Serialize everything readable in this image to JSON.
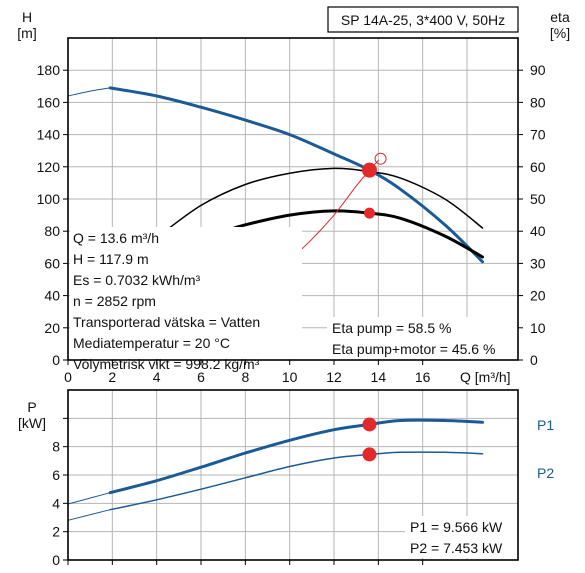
{
  "chart_data": [
    {
      "type": "line",
      "title": "SP 14A-25, 3*400 V, 50Hz",
      "ylabel_left": "H",
      "ylabel_left_unit": "[m]",
      "ylabel_right": "eta",
      "ylabel_right_unit": "[%]",
      "xlabel": "Q [m³/h]",
      "xlim": [
        0,
        20.3
      ],
      "ylim_left": [
        0,
        200
      ],
      "ylim_right": [
        0,
        100
      ],
      "x_ticks": [
        "0",
        "2",
        "4",
        "6",
        "8",
        "10",
        "12",
        "14",
        "16"
      ],
      "x_tick_values": [
        0,
        2,
        4,
        6,
        8,
        10,
        12,
        14,
        16
      ],
      "y_left_ticks": [
        "0",
        "20",
        "40",
        "60",
        "80",
        "100",
        "120",
        "140",
        "160",
        "180"
      ],
      "y_left_tick_values": [
        0,
        20,
        40,
        60,
        80,
        100,
        120,
        140,
        160,
        180
      ],
      "y_right_ticks": [
        "0",
        "10",
        "20",
        "30",
        "40",
        "50",
        "60",
        "70",
        "80",
        "90"
      ],
      "y_right_tick_values": [
        0,
        10,
        20,
        30,
        40,
        50,
        60,
        70,
        80,
        90
      ],
      "grid": true,
      "series": [
        {
          "axis": "left",
          "color": "#1a5a96",
          "width": 3,
          "x": [
            1.9,
            4,
            6,
            8,
            10,
            12,
            13.6,
            15,
            17,
            18.7
          ],
          "values": [
            169,
            164,
            157,
            149,
            140,
            128,
            117.9,
            106,
            84,
            61
          ]
        },
        {
          "axis": "left",
          "color": "#1a5a96",
          "width": 1,
          "x": [
            0,
            1,
            1.9
          ],
          "values": [
            164,
            167,
            169
          ]
        },
        {
          "axis": "right",
          "color": "#000000",
          "width": 1.5,
          "x": [
            4,
            6,
            8,
            10,
            12,
            13.6,
            15,
            17,
            18.7
          ],
          "values": [
            38,
            48,
            54.5,
            58,
            59.5,
            58.5,
            56.5,
            50,
            41
          ]
        },
        {
          "axis": "right",
          "color": "#000000",
          "width": 3,
          "x": [
            7.3,
            8,
            10,
            12,
            13.6,
            15,
            17,
            18.7
          ],
          "values": [
            40.5,
            42,
            45,
            46.3,
            45.6,
            44,
            38.5,
            32
          ]
        },
        {
          "axis": "left",
          "color": "#e32a2a",
          "width": 1,
          "x": [
            10,
            11,
            12,
            13,
            13.6,
            14
          ],
          "values": [
            62,
            75,
            90,
            108,
            117.9,
            124
          ]
        },
        {
          "axis": "left",
          "color": "#e32a2a",
          "width": 1,
          "x": [
            0.6,
            1.7
          ],
          "values": [
            0.5,
            2
          ]
        }
      ],
      "points": [
        {
          "axis": "left",
          "x": 13.6,
          "y": 117.9,
          "color": "#e32a2a",
          "size": "large",
          "fill": true
        },
        {
          "axis": "right",
          "x": 13.6,
          "y": 45.6,
          "color": "#e32a2a",
          "size": "small",
          "fill": true
        },
        {
          "axis": "left",
          "x": 14.1,
          "y": 125,
          "color": "#e32a2a",
          "size": "small",
          "fill": false
        }
      ],
      "info_left": [
        "Q = 13.6 m³/h",
        "H = 117.9 m",
        "Es = 0.7032 kWh/m³",
        "n = 2852 rpm",
        "Transporterad vätska = Vatten",
        "Mediatemperatur = 20 °C",
        "Volymetrisk vikt = 998.2 kg/m³"
      ],
      "info_right": [
        "Eta pump = 58.5 %",
        "Eta pump+motor = 45.6 %"
      ]
    },
    {
      "type": "line",
      "ylabel": "P",
      "ylabel_unit": "[kW]",
      "xlim": [
        0,
        20.3
      ],
      "ylim": [
        0,
        12
      ],
      "y_ticks": [
        "0",
        "2",
        "4",
        "6",
        "8"
      ],
      "y_tick_values": [
        0,
        2,
        4,
        6,
        8
      ],
      "grid": true,
      "series": [
        {
          "name": "P1",
          "color": "#1a5a96",
          "width": 3,
          "x": [
            1.9,
            4,
            6,
            8,
            10,
            12,
            13.6,
            15,
            17,
            18.7
          ],
          "values": [
            4.75,
            5.6,
            6.55,
            7.55,
            8.45,
            9.2,
            9.566,
            9.85,
            9.85,
            9.72
          ]
        },
        {
          "name": "",
          "color": "#1a5a96",
          "width": 1,
          "x": [
            0,
            1.9
          ],
          "values": [
            3.95,
            4.75
          ]
        },
        {
          "name": "P2",
          "color": "#1a5a96",
          "width": 1.5,
          "x": [
            1.9,
            4,
            6,
            8,
            10,
            12,
            13.6,
            15,
            17,
            18.7
          ],
          "values": [
            3.55,
            4.25,
            5.0,
            5.8,
            6.6,
            7.2,
            7.453,
            7.6,
            7.6,
            7.5
          ]
        },
        {
          "name": "",
          "color": "#1a5a96",
          "width": 1,
          "x": [
            0,
            1.9
          ],
          "values": [
            2.8,
            3.55
          ]
        }
      ],
      "points": [
        {
          "x": 13.6,
          "y": 9.566,
          "color": "#e32a2a",
          "size": "large",
          "fill": true
        },
        {
          "x": 13.6,
          "y": 7.453,
          "color": "#e32a2a",
          "size": "large",
          "fill": true
        }
      ],
      "info_right": [
        "P1 = 9.566 kW",
        "P2 = 7.453 kW"
      ]
    }
  ]
}
